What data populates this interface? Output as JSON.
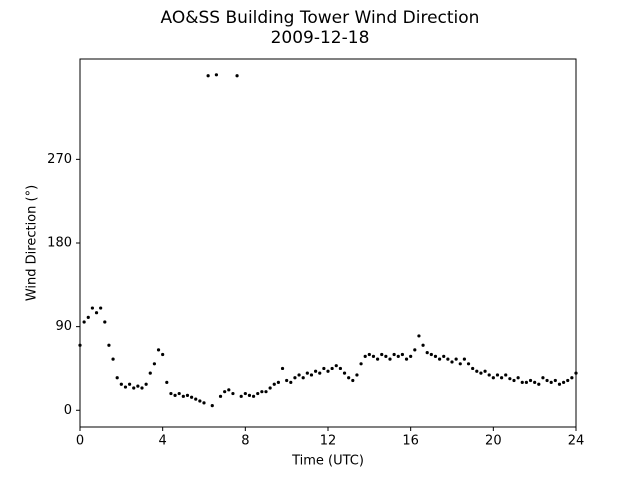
{
  "chart_data": {
    "type": "scatter",
    "title": "AO&SS Building Tower Wind Direction",
    "subtitle": "2009-12-18",
    "x_label": "Time (UTC)",
    "y_label": "Wind Direction (°)",
    "color": "#000000",
    "xlim": [
      0,
      24
    ],
    "xticks": [
      0,
      4,
      8,
      12,
      16,
      20,
      24
    ],
    "ylim": [
      -18,
      378
    ],
    "yticks": [
      0,
      90,
      180,
      270
    ],
    "x": [
      0.0,
      0.2,
      0.4,
      0.6,
      0.8,
      1.0,
      1.2,
      1.4,
      1.6,
      1.8,
      2.0,
      2.2,
      2.4,
      2.6,
      2.8,
      3.0,
      3.2,
      3.4,
      3.6,
      3.8,
      4.0,
      4.2,
      4.4,
      4.6,
      4.8,
      5.0,
      5.2,
      5.4,
      5.6,
      5.8,
      6.0,
      6.2,
      6.4,
      6.6,
      6.8,
      7.0,
      7.2,
      7.4,
      7.6,
      7.8,
      8.0,
      8.2,
      8.4,
      8.6,
      8.8,
      9.0,
      9.2,
      9.4,
      9.6,
      9.8,
      10.0,
      10.2,
      10.4,
      10.6,
      10.8,
      11.0,
      11.2,
      11.4,
      11.6,
      11.8,
      12.0,
      12.2,
      12.4,
      12.6,
      12.8,
      13.0,
      13.2,
      13.4,
      13.6,
      13.8,
      14.0,
      14.2,
      14.4,
      14.6,
      14.8,
      15.0,
      15.2,
      15.4,
      15.6,
      15.8,
      16.0,
      16.2,
      16.4,
      16.6,
      16.8,
      17.0,
      17.2,
      17.4,
      17.6,
      17.8,
      18.0,
      18.2,
      18.4,
      18.6,
      18.8,
      19.0,
      19.2,
      19.4,
      19.6,
      19.8,
      20.0,
      20.2,
      20.4,
      20.6,
      20.8,
      21.0,
      21.2,
      21.4,
      21.6,
      21.8,
      22.0,
      22.2,
      22.4,
      22.6,
      22.8,
      23.0,
      23.2,
      23.4,
      23.6,
      23.8,
      24.0
    ],
    "values": [
      70,
      95,
      100,
      110,
      105,
      110,
      95,
      70,
      55,
      35,
      28,
      25,
      28,
      24,
      26,
      24,
      28,
      40,
      50,
      65,
      60,
      30,
      18,
      16,
      18,
      15,
      16,
      14,
      12,
      10,
      8,
      360,
      5,
      361,
      15,
      20,
      22,
      18,
      360,
      15,
      18,
      16,
      15,
      18,
      20,
      20,
      24,
      28,
      30,
      45,
      32,
      30,
      35,
      38,
      35,
      40,
      38,
      42,
      40,
      45,
      42,
      45,
      48,
      45,
      40,
      35,
      32,
      38,
      50,
      58,
      60,
      58,
      55,
      60,
      58,
      55,
      60,
      58,
      60,
      55,
      58,
      65,
      80,
      70,
      62,
      60,
      58,
      55,
      58,
      55,
      52,
      55,
      50,
      55,
      50,
      45,
      42,
      40,
      42,
      38,
      35,
      38,
      35,
      38,
      34,
      32,
      35,
      30,
      30,
      32,
      30,
      28,
      35,
      32,
      30,
      32,
      28,
      30,
      32,
      35,
      40
    ]
  }
}
